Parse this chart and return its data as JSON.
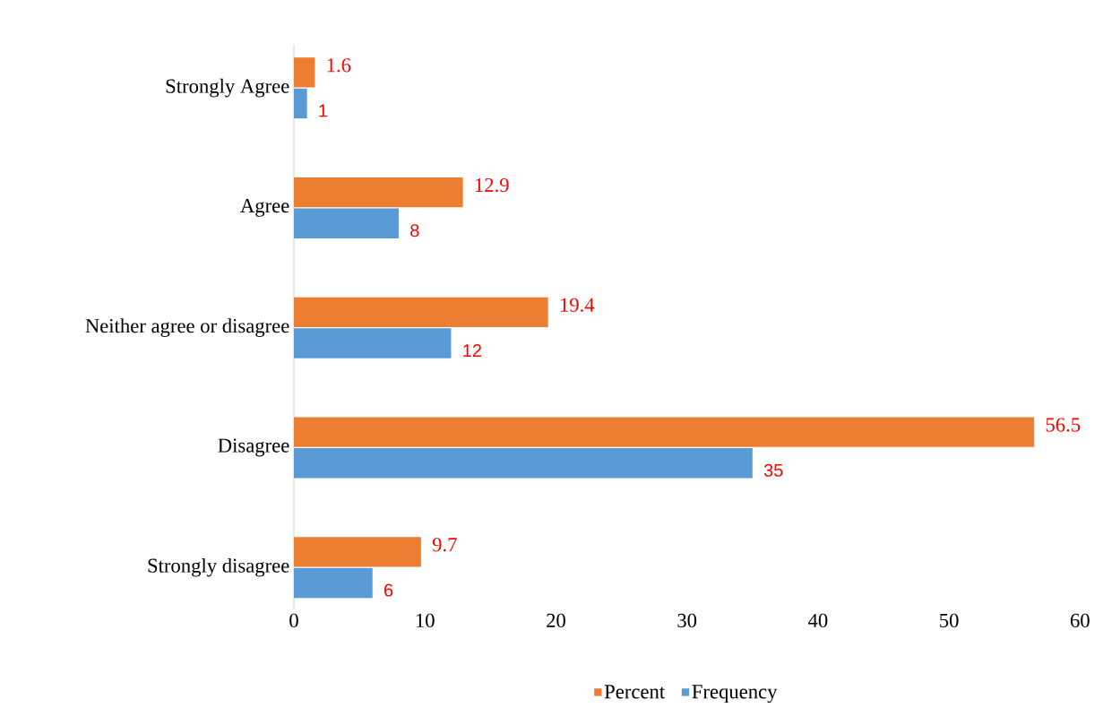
{
  "chart_data": {
    "type": "bar",
    "orientation": "horizontal",
    "categories": [
      "Strongly Agree",
      "Agree",
      "Neither agree or disagree",
      "Disagree",
      "Strongly disagree"
    ],
    "series": [
      {
        "name": "Percent",
        "color": "#ed7d31",
        "values": [
          1.6,
          12.9,
          19.4,
          56.5,
          9.7
        ]
      },
      {
        "name": "Frequency",
        "color": "#5b9bd5",
        "values": [
          1,
          8,
          12,
          35,
          6
        ]
      }
    ],
    "xlim": [
      0,
      60
    ],
    "xticks": [
      0,
      10,
      20,
      30,
      40,
      50,
      60
    ],
    "data_labels": true,
    "legend": "bottom",
    "grid": false
  }
}
